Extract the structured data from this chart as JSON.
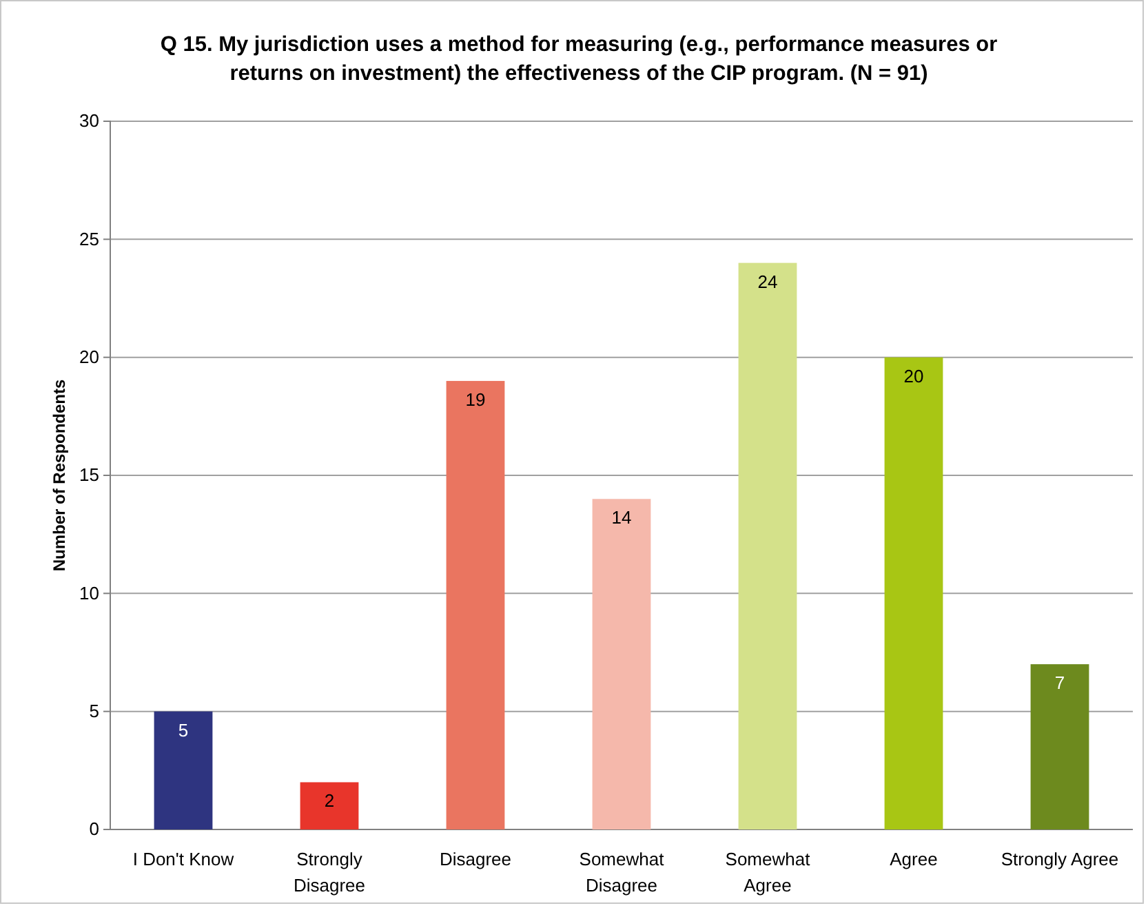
{
  "chart_data": {
    "type": "bar",
    "title": "Q 15.  My jurisdiction uses a method for measuring (e.g., performance measures or returns on investment) the effectiveness of the CIP program.  (N = 91)",
    "ylabel": "Number of Respondents",
    "categories": [
      "I Don't Know",
      "Strongly Disagree",
      "Disagree",
      "Somewhat Disagree",
      "Somewhat Agree",
      "Agree",
      "Strongly Agree"
    ],
    "values": [
      5,
      2,
      19,
      14,
      24,
      20,
      7
    ],
    "colors": [
      "#2e3480",
      "#e8352b",
      "#ea7560",
      "#f5b8ab",
      "#d4e18a",
      "#a8c614",
      "#6d8a1e"
    ],
    "ylim": [
      0,
      30
    ],
    "yticks": [
      0,
      5,
      10,
      15,
      20,
      25,
      30
    ],
    "grid": "y",
    "data_labels": true
  }
}
